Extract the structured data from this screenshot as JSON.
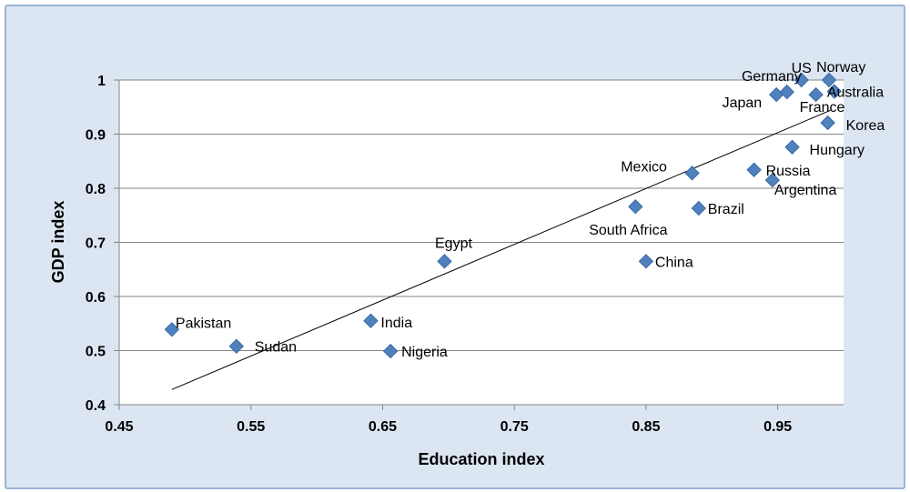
{
  "chart_data": {
    "type": "scatter",
    "xlabel": "Education index",
    "ylabel": "GDP index",
    "xlim": [
      0.45,
      1.0
    ],
    "ylim": [
      0.4,
      1.0
    ],
    "xticks": [
      "0.45",
      "0.55",
      "0.65",
      "0.75",
      "0.85",
      "0.95"
    ],
    "xtick_values": [
      0.45,
      0.55,
      0.65,
      0.75,
      0.85,
      0.95
    ],
    "yticks": [
      "0.4",
      "0.5",
      "0.6",
      "0.7",
      "0.8",
      "0.9",
      "1"
    ],
    "ytick_values": [
      0.4,
      0.5,
      0.6,
      0.7,
      0.8,
      0.9,
      1.0
    ],
    "grid": "horizontal",
    "marker": "diamond",
    "colors": {
      "marker": "#4f81bd",
      "marker_edge": "#3a6aa6",
      "frame_bg": "#dce6f2",
      "plot_bg": "#ffffff",
      "grid": "#868686",
      "trendline": "#000000"
    },
    "trendline": {
      "x": [
        0.49,
        0.99
      ],
      "y": [
        0.428,
        0.944
      ]
    },
    "points": [
      {
        "label": "Pakistan",
        "x": 0.49,
        "y": 0.539
      },
      {
        "label": "Sudan",
        "x": 0.539,
        "y": 0.508
      },
      {
        "label": "India",
        "x": 0.641,
        "y": 0.555
      },
      {
        "label": "Nigeria",
        "x": 0.656,
        "y": 0.499
      },
      {
        "label": "Egypt",
        "x": 0.697,
        "y": 0.665
      },
      {
        "label": "China",
        "x": 0.85,
        "y": 0.665
      },
      {
        "label": "South Africa",
        "x": 0.842,
        "y": 0.766
      },
      {
        "label": "Mexico",
        "x": 0.885,
        "y": 0.828
      },
      {
        "label": "Brazil",
        "x": 0.89,
        "y": 0.763
      },
      {
        "label": "Russia",
        "x": 0.932,
        "y": 0.834
      },
      {
        "label": "Argentina",
        "x": 0.946,
        "y": 0.815
      },
      {
        "label": "Hungary",
        "x": 0.961,
        "y": 0.876
      },
      {
        "label": "Japan",
        "x": 0.949,
        "y": 0.973
      },
      {
        "label": "Germany",
        "x": 0.957,
        "y": 0.978
      },
      {
        "label": "US",
        "x": 0.968,
        "y": 1.0
      },
      {
        "label": "France",
        "x": 0.979,
        "y": 0.973
      },
      {
        "label": "Norway",
        "x": 0.989,
        "y": 1.0
      },
      {
        "label": "Korea",
        "x": 0.988,
        "y": 0.921
      },
      {
        "label": "Australia",
        "x": 0.993,
        "y": 0.979
      }
    ]
  }
}
